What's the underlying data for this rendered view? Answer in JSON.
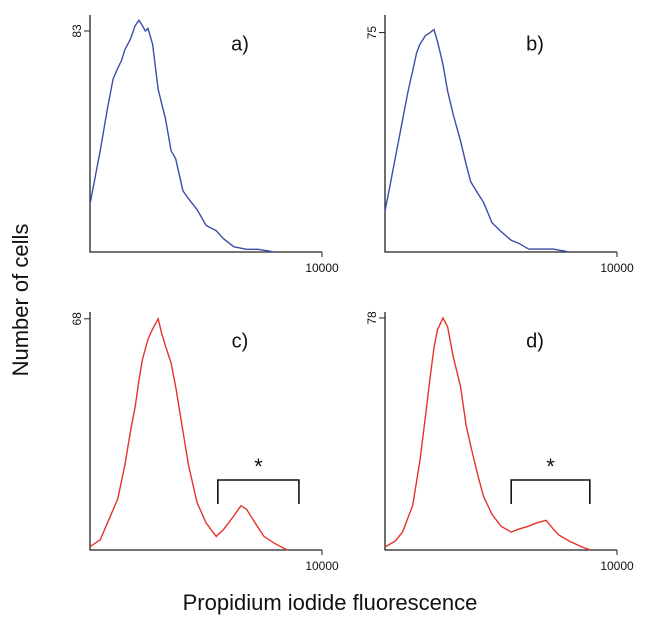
{
  "y_label": "Number of cells",
  "x_label": "Propidium iodide fluorescence",
  "chart_data": [
    {
      "type": "line",
      "label": "a)",
      "log_x": true,
      "xlim": [
        1,
        10000
      ],
      "ylim": [
        0,
        89
      ],
      "xticks": [
        10000
      ],
      "yticks": [
        83
      ],
      "x": [
        1,
        1.5,
        2,
        2.5,
        3,
        3.5,
        4,
        5,
        6,
        7,
        8,
        9,
        10,
        12,
        15,
        20,
        25,
        30,
        40,
        50,
        70,
        100,
        150,
        200,
        300,
        500,
        800,
        1500
      ],
      "series": [
        {
          "color": "#3b4ea6",
          "values": [
            18,
            38,
            54,
            65,
            69,
            72,
            76,
            80,
            85,
            87,
            85,
            83,
            84,
            78,
            61,
            50,
            38,
            35,
            23,
            20,
            16,
            10,
            8,
            5,
            2,
            1,
            1,
            0
          ]
        }
      ]
    },
    {
      "type": "line",
      "label": "b)",
      "log_x": true,
      "xlim": [
        1,
        10000
      ],
      "ylim": [
        0,
        81
      ],
      "xticks": [
        10000
      ],
      "yticks": [
        75
      ],
      "x": [
        1,
        1.2,
        1.5,
        2,
        2.5,
        3,
        3.5,
        4,
        5,
        6,
        7,
        8,
        9,
        10,
        12,
        15,
        20,
        25,
        30,
        40,
        50,
        70,
        100,
        150,
        200,
        300,
        500,
        800,
        1500
      ],
      "series": [
        {
          "color": "#3b4ea6",
          "values": [
            14,
            22,
            32,
            45,
            55,
            62,
            68,
            71,
            74,
            75,
            76,
            72,
            68,
            64,
            55,
            47,
            38,
            30,
            24,
            20,
            17,
            10,
            7,
            4,
            3,
            1,
            1,
            1,
            0
          ]
        }
      ]
    },
    {
      "type": "line",
      "label": "c)",
      "log_x": true,
      "xlim": [
        1,
        10000
      ],
      "ylim": [
        0,
        70
      ],
      "xticks": [
        10000
      ],
      "yticks": [
        68
      ],
      "annotation": {
        "text": "*",
        "x": [
          160,
          4000
        ]
      },
      "x": [
        1,
        1.5,
        2,
        3,
        4,
        5,
        6,
        7,
        8,
        10,
        12,
        15,
        17,
        20,
        25,
        30,
        40,
        50,
        70,
        100,
        150,
        200,
        300,
        400,
        500,
        700,
        1000,
        1500,
        2500
      ],
      "series": [
        {
          "color": "#e5332a",
          "values": [
            1,
            3,
            8,
            15,
            25,
            35,
            42,
            50,
            56,
            62,
            65,
            68,
            64,
            60,
            55,
            48,
            35,
            25,
            14,
            8,
            4,
            6,
            10,
            13,
            12,
            8,
            4,
            2,
            0
          ]
        }
      ]
    },
    {
      "type": "line",
      "label": "d)",
      "log_x": true,
      "xlim": [
        1,
        10000
      ],
      "ylim": [
        0,
        80
      ],
      "xticks": [
        10000
      ],
      "yticks": [
        78
      ],
      "annotation": {
        "text": "*",
        "x": [
          150,
          3400
        ]
      },
      "x": [
        1,
        1.5,
        2,
        3,
        4,
        5,
        6,
        7,
        8,
        10,
        12,
        15,
        20,
        25,
        30,
        40,
        50,
        70,
        100,
        150,
        200,
        300,
        400,
        600,
        800,
        1000,
        1500,
        2500,
        3500
      ],
      "series": [
        {
          "color": "#e5332a",
          "values": [
            1,
            3,
            6,
            15,
            30,
            45,
            58,
            68,
            74,
            78,
            75,
            65,
            55,
            42,
            35,
            25,
            18,
            12,
            8,
            6,
            7,
            8,
            9,
            10,
            7,
            5,
            3,
            1,
            0
          ]
        }
      ]
    }
  ]
}
